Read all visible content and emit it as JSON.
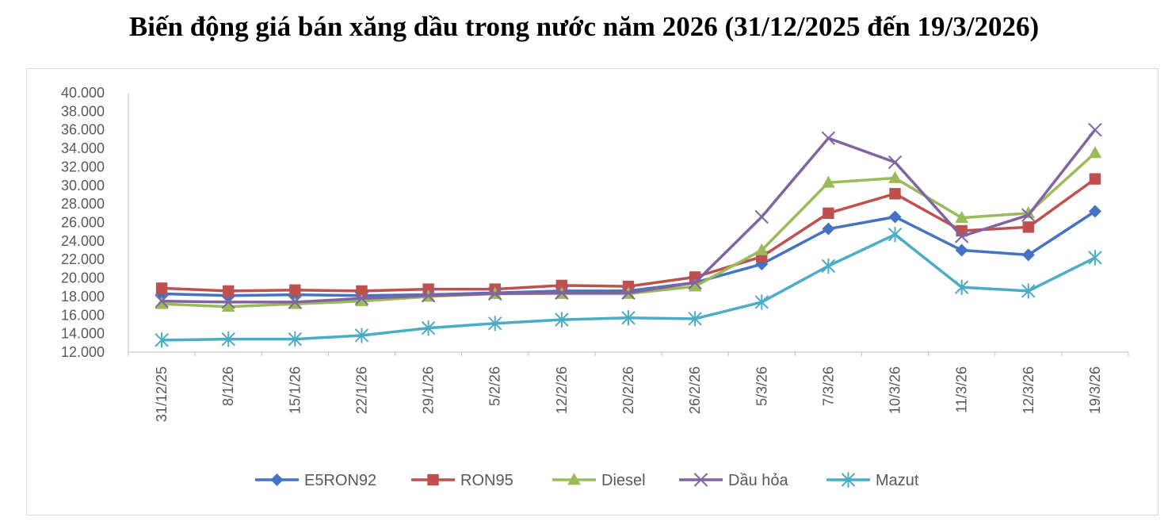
{
  "chart_data": {
    "type": "line",
    "title": "Biến động giá bán xăng dầu trong nước năm 2026 (31/12/2025 đến 19/3/2026)",
    "categories": [
      "31/12/25",
      "8/1/26",
      "15/1/26",
      "22/1/26",
      "29/1/26",
      "5/2/26",
      "12/2/26",
      "20/2/26",
      "26/2/26",
      "5/3/26",
      "7/3/26",
      "10/3/26",
      "11/3/26",
      "12/3/26",
      "19/3/26"
    ],
    "ylim": [
      12000,
      40000
    ],
    "yticks": [
      "12.000",
      "14.000",
      "16.000",
      "18.000",
      "20.000",
      "22.000",
      "24.000",
      "26.000",
      "28.000",
      "30.000",
      "32.000",
      "34.000",
      "36.000",
      "38.000",
      "40.000"
    ],
    "grid": false,
    "legend_position": "bottom",
    "series": [
      {
        "name": "E5RON92",
        "color": "#4472C4",
        "marker": "diamond",
        "values": [
          18300,
          18100,
          18200,
          18100,
          18200,
          18400,
          18600,
          18600,
          19500,
          21500,
          25300,
          26600,
          23000,
          22500,
          27200
        ]
      },
      {
        "name": "RON95",
        "color": "#C0504D",
        "marker": "square",
        "values": [
          18900,
          18600,
          18700,
          18600,
          18800,
          18800,
          19200,
          19100,
          20100,
          22300,
          27000,
          29100,
          25100,
          25500,
          30700
        ]
      },
      {
        "name": "Diesel",
        "color": "#9BBB59",
        "marker": "triangle",
        "values": [
          17200,
          16900,
          17200,
          17500,
          18000,
          18300,
          18300,
          18300,
          19100,
          23000,
          30300,
          30800,
          26500,
          27000,
          33500
        ]
      },
      {
        "name": "Dầu hỏa",
        "color": "#8064A2",
        "marker": "x",
        "values": [
          17500,
          17400,
          17400,
          17800,
          18100,
          18300,
          18400,
          18400,
          19500,
          26600,
          35100,
          32500,
          24500,
          26800,
          36000
        ]
      },
      {
        "name": "Mazut",
        "color": "#4BACC6",
        "marker": "star",
        "values": [
          13300,
          13400,
          13400,
          13800,
          14600,
          15100,
          15500,
          15700,
          15600,
          17400,
          21300,
          24700,
          19000,
          18600,
          22200
        ]
      }
    ]
  }
}
